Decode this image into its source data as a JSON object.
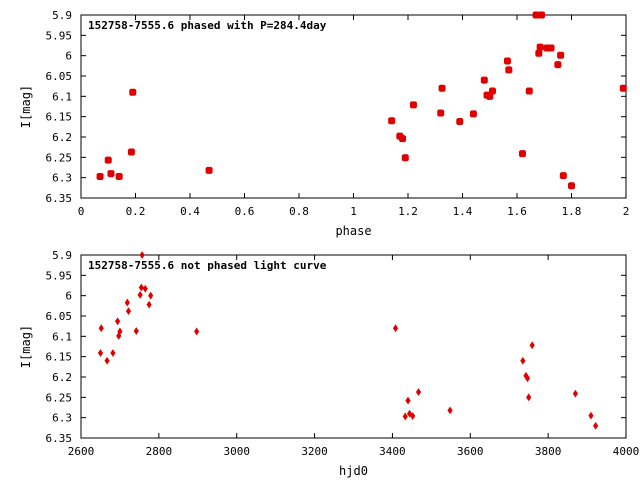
{
  "chart_data": [
    {
      "type": "scatter",
      "title": "152758-7555.6 phased with P=284.4day",
      "xlabel": "phase",
      "ylabel": "I[mag]",
      "xlim": [
        0,
        2
      ],
      "ylim": [
        6.35,
        5.9
      ],
      "x_ticks": [
        "0",
        "0.2",
        "0.4",
        "0.6",
        "0.8",
        "1",
        "1.2",
        "1.4",
        "1.6",
        "1.8",
        "2"
      ],
      "x_tick_values": [
        0,
        0.2,
        0.4,
        0.6,
        0.8,
        1,
        1.2,
        1.4,
        1.6,
        1.8,
        2
      ],
      "y_ticks": [
        "5.9",
        "5.95",
        "6",
        "6.05",
        "6.1",
        "6.15",
        "6.2",
        "6.25",
        "6.3",
        "6.35"
      ],
      "y_tick_values": [
        5.9,
        5.95,
        6,
        6.05,
        6.1,
        6.15,
        6.2,
        6.25,
        6.3,
        6.35
      ],
      "color": "#e00000",
      "marker": "square-cross",
      "points": [
        [
          0.07,
          6.297
        ],
        [
          0.1,
          6.257
        ],
        [
          0.11,
          6.29
        ],
        [
          0.14,
          6.297
        ],
        [
          0.185,
          6.237
        ],
        [
          0.19,
          6.09
        ],
        [
          0.47,
          6.282
        ],
        [
          1.14,
          6.16
        ],
        [
          1.17,
          6.198
        ],
        [
          1.18,
          6.204
        ],
        [
          1.19,
          6.251
        ],
        [
          1.22,
          6.121
        ],
        [
          1.32,
          6.141
        ],
        [
          1.325,
          6.08
        ],
        [
          1.39,
          6.162
        ],
        [
          1.44,
          6.143
        ],
        [
          1.48,
          6.06
        ],
        [
          1.49,
          6.097
        ],
        [
          1.5,
          6.1
        ],
        [
          1.51,
          6.087
        ],
        [
          1.565,
          6.013
        ],
        [
          1.57,
          6.035
        ],
        [
          1.62,
          6.241
        ],
        [
          1.645,
          6.087
        ],
        [
          1.67,
          5.9
        ],
        [
          1.68,
          5.994
        ],
        [
          1.685,
          5.979
        ],
        [
          1.69,
          5.9
        ],
        [
          1.71,
          5.981
        ],
        [
          1.725,
          5.981
        ],
        [
          1.75,
          6.022
        ],
        [
          1.76,
          5.999
        ],
        [
          1.77,
          6.295
        ],
        [
          1.8,
          6.32
        ],
        [
          1.99,
          6.08
        ]
      ]
    },
    {
      "type": "scatter",
      "title": "152758-7555.6 not phased light curve",
      "xlabel": "hjd0",
      "ylabel": "I[mag]",
      "xlim": [
        2600,
        4000
      ],
      "ylim": [
        6.35,
        5.9
      ],
      "x_ticks": [
        "2600",
        "2800",
        "3000",
        "3200",
        "3400",
        "3600",
        "3800",
        "4000"
      ],
      "x_tick_values": [
        2600,
        2800,
        3000,
        3200,
        3400,
        3600,
        3800,
        4000
      ],
      "y_ticks": [
        "5.9",
        "5.95",
        "6",
        "6.05",
        "6.1",
        "6.15",
        "6.2",
        "6.25",
        "6.3",
        "6.35"
      ],
      "y_tick_values": [
        5.9,
        5.95,
        6,
        6.05,
        6.1,
        6.15,
        6.2,
        6.25,
        6.3,
        6.35
      ],
      "color": "#e00000",
      "marker": "diamond",
      "points": [
        [
          2650,
          6.141
        ],
        [
          2652,
          6.08
        ],
        [
          2667,
          6.16
        ],
        [
          2682,
          6.141
        ],
        [
          2694,
          6.063
        ],
        [
          2697,
          6.099
        ],
        [
          2700,
          6.088
        ],
        [
          2719,
          6.017
        ],
        [
          2722,
          6.038
        ],
        [
          2742,
          6.087
        ],
        [
          2752,
          5.998
        ],
        [
          2755,
          5.98
        ],
        [
          2757,
          5.9
        ],
        [
          2765,
          5.983
        ],
        [
          2775,
          6.022
        ],
        [
          2779,
          6.0
        ],
        [
          2897,
          6.088
        ],
        [
          3408,
          6.08
        ],
        [
          3433,
          6.297
        ],
        [
          3440,
          6.258
        ],
        [
          3444,
          6.29
        ],
        [
          3452,
          6.296
        ],
        [
          3467,
          6.237
        ],
        [
          3548,
          6.282
        ],
        [
          3735,
          6.16
        ],
        [
          3743,
          6.197
        ],
        [
          3747,
          6.203
        ],
        [
          3750,
          6.25
        ],
        [
          3759,
          6.122
        ],
        [
          3870,
          6.241
        ],
        [
          3910,
          6.295
        ],
        [
          3922,
          6.32
        ]
      ]
    }
  ]
}
